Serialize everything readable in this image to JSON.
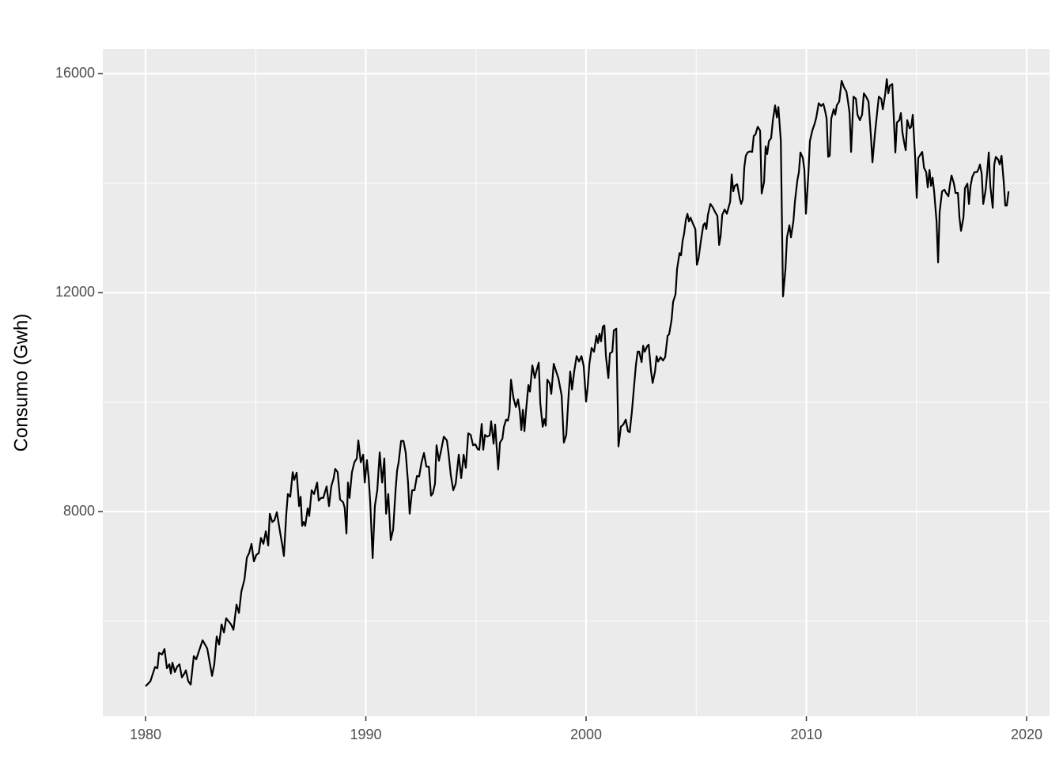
{
  "chart_data": {
    "type": "line",
    "y_label": "Consumo (Gwh)",
    "xlim": [
      1978.06,
      2021.04
    ],
    "ylim": [
      4260,
      16450
    ],
    "xticks": [
      1980,
      1990,
      2000,
      2010,
      2020
    ],
    "yticks": [
      8000,
      12000,
      16000
    ],
    "minor_xticks": [
      1985,
      1995,
      2005,
      2015
    ],
    "minor_yticks": [
      6000,
      10000,
      14000
    ],
    "grid": true,
    "color": "#000000",
    "x": [
      1980.0,
      1980.22,
      1980.43,
      1980.54,
      1980.61,
      1980.75,
      1980.86,
      1980.97,
      1981.08,
      1981.15,
      1981.22,
      1981.33,
      1981.44,
      1981.54,
      1981.65,
      1981.76,
      1981.83,
      1981.94,
      1982.05,
      1982.19,
      1982.3,
      1982.44,
      1982.59,
      1982.8,
      1983.02,
      1983.12,
      1983.23,
      1983.34,
      1983.45,
      1983.56,
      1983.66,
      1983.88,
      1983.99,
      1984.13,
      1984.24,
      1984.35,
      1984.49,
      1984.6,
      1984.7,
      1984.81,
      1984.92,
      1985.03,
      1985.14,
      1985.24,
      1985.35,
      1985.46,
      1985.57,
      1985.64,
      1985.75,
      1985.85,
      1985.96,
      1986.1,
      1986.21,
      1986.28,
      1986.39,
      1986.46,
      1986.57,
      1986.68,
      1986.75,
      1986.86,
      1986.97,
      1987.04,
      1987.11,
      1987.18,
      1987.25,
      1987.36,
      1987.43,
      1987.54,
      1987.65,
      1987.79,
      1987.86,
      1987.97,
      1988.07,
      1988.22,
      1988.33,
      1988.43,
      1988.54,
      1988.61,
      1988.72,
      1988.83,
      1988.97,
      1989.04,
      1989.12,
      1989.19,
      1989.26,
      1989.37,
      1989.48,
      1989.59,
      1989.66,
      1989.77,
      1989.88,
      1989.95,
      1990.05,
      1990.13,
      1990.2,
      1990.31,
      1990.41,
      1990.52,
      1990.63,
      1990.74,
      1990.84,
      1990.92,
      1991.02,
      1991.13,
      1991.24,
      1991.35,
      1991.42,
      1991.49,
      1991.6,
      1991.71,
      1991.81,
      1991.92,
      1991.99,
      1992.1,
      1992.21,
      1992.32,
      1992.42,
      1992.53,
      1992.64,
      1992.75,
      1992.86,
      1992.96,
      1993.04,
      1993.14,
      1993.21,
      1993.32,
      1993.43,
      1993.54,
      1993.68,
      1993.75,
      1993.86,
      1993.97,
      1994.08,
      1994.22,
      1994.33,
      1994.44,
      1994.54,
      1994.65,
      1994.76,
      1994.87,
      1994.97,
      1995.08,
      1995.15,
      1995.26,
      1995.33,
      1995.41,
      1995.51,
      1995.62,
      1995.69,
      1995.8,
      1995.87,
      1996.01,
      1996.09,
      1996.2,
      1996.27,
      1996.37,
      1996.45,
      1996.52,
      1996.59,
      1996.7,
      1996.81,
      1996.91,
      1996.99,
      1997.06,
      1997.13,
      1997.2,
      1997.27,
      1997.38,
      1997.45,
      1997.56,
      1997.67,
      1997.74,
      1997.85,
      1997.92,
      1998.03,
      1998.1,
      1998.17,
      1998.24,
      1998.35,
      1998.42,
      1998.53,
      1998.64,
      1998.74,
      1998.89,
      1998.99,
      1999.1,
      1999.21,
      1999.28,
      1999.36,
      1999.46,
      1999.57,
      1999.68,
      1999.79,
      1999.89,
      2000.0,
      2000.07,
      2000.15,
      2000.25,
      2000.36,
      2000.47,
      2000.54,
      2000.61,
      2000.68,
      2000.76,
      2000.83,
      2000.9,
      2001.01,
      2001.08,
      2001.19,
      2001.26,
      2001.37,
      2001.47,
      2001.58,
      2001.69,
      2001.8,
      2001.9,
      2001.98,
      2002.08,
      2002.16,
      2002.26,
      2002.34,
      2002.41,
      2002.52,
      2002.59,
      2002.66,
      2002.77,
      2002.84,
      2002.95,
      2003.02,
      2003.13,
      2003.2,
      2003.27,
      2003.38,
      2003.49,
      2003.59,
      2003.7,
      2003.77,
      2003.88,
      2003.95,
      2004.06,
      2004.13,
      2004.24,
      2004.31,
      2004.38,
      2004.45,
      2004.53,
      2004.6,
      2004.67,
      2004.74,
      2004.85,
      2004.96,
      2005.03,
      2005.1,
      2005.21,
      2005.32,
      2005.39,
      2005.46,
      2005.53,
      2005.64,
      2005.75,
      2005.86,
      2005.96,
      2006.04,
      2006.11,
      2006.18,
      2006.29,
      2006.39,
      2006.47,
      2006.54,
      2006.61,
      2006.68,
      2006.75,
      2006.86,
      2006.97,
      2007.04,
      2007.11,
      2007.18,
      2007.25,
      2007.33,
      2007.43,
      2007.54,
      2007.61,
      2007.69,
      2007.79,
      2007.9,
      2007.97,
      2008.08,
      2008.15,
      2008.22,
      2008.3,
      2008.4,
      2008.48,
      2008.58,
      2008.66,
      2008.73,
      2008.84,
      2008.94,
      2009.05,
      2009.12,
      2009.23,
      2009.3,
      2009.41,
      2009.48,
      2009.59,
      2009.66,
      2009.73,
      2009.84,
      2009.91,
      2009.98,
      2010.09,
      2010.16,
      2010.27,
      2010.38,
      2010.45,
      2010.56,
      2010.67,
      2010.77,
      2010.85,
      2010.92,
      2010.99,
      2011.06,
      2011.13,
      2011.24,
      2011.31,
      2011.38,
      2011.49,
      2011.6,
      2011.71,
      2011.82,
      2011.89,
      2011.96,
      2012.03,
      2012.14,
      2012.25,
      2012.32,
      2012.43,
      2012.53,
      2012.61,
      2012.71,
      2012.82,
      2012.93,
      2013.0,
      2013.11,
      2013.22,
      2013.29,
      2013.4,
      2013.47,
      2013.58,
      2013.65,
      2013.72,
      2013.79,
      2013.9,
      2013.97,
      2014.04,
      2014.11,
      2014.22,
      2014.29,
      2014.36,
      2014.44,
      2014.51,
      2014.58,
      2014.69,
      2014.76,
      2014.83,
      2014.94,
      2015.01,
      2015.08,
      2015.19,
      2015.26,
      2015.34,
      2015.44,
      2015.51,
      2015.59,
      2015.66,
      2015.73,
      2015.8,
      2015.91,
      2015.98,
      2016.05,
      2016.16,
      2016.27,
      2016.34,
      2016.45,
      2016.52,
      2016.59,
      2016.7,
      2016.77,
      2016.88,
      2016.95,
      2017.02,
      2017.13,
      2017.2,
      2017.31,
      2017.38,
      2017.45,
      2017.53,
      2017.63,
      2017.74,
      2017.81,
      2017.88,
      2017.96,
      2018.03,
      2018.14,
      2018.21,
      2018.28,
      2018.35,
      2018.46,
      2018.53,
      2018.6,
      2018.71,
      2018.78,
      2018.86,
      2018.96,
      2019.03,
      2019.1,
      2019.18
    ],
    "values": [
      4810,
      4900,
      5160,
      5140,
      5420,
      5390,
      5490,
      5140,
      5210,
      5040,
      5240,
      5070,
      5170,
      5210,
      4970,
      5040,
      5100,
      4900,
      4840,
      5360,
      5300,
      5470,
      5650,
      5500,
      5000,
      5210,
      5720,
      5570,
      5940,
      5790,
      6050,
      5940,
      5840,
      6300,
      6150,
      6540,
      6760,
      7160,
      7240,
      7410,
      7090,
      7210,
      7240,
      7520,
      7410,
      7640,
      7380,
      7960,
      7810,
      7840,
      7990,
      7640,
      7380,
      7190,
      7960,
      8320,
      8270,
      8720,
      8580,
      8710,
      8100,
      8270,
      7740,
      7810,
      7740,
      8060,
      7920,
      8390,
      8320,
      8530,
      8200,
      8250,
      8250,
      8460,
      8100,
      8460,
      8610,
      8780,
      8720,
      8220,
      8170,
      8070,
      7600,
      8530,
      8250,
      8720,
      8900,
      8970,
      9300,
      8900,
      9040,
      8530,
      8940,
      8610,
      8170,
      7150,
      8100,
      8390,
      9080,
      8530,
      8970,
      7960,
      8320,
      7480,
      7670,
      8390,
      8750,
      8900,
      9290,
      9290,
      9080,
      8510,
      7960,
      8390,
      8390,
      8650,
      8640,
      8900,
      9070,
      8820,
      8820,
      8290,
      8330,
      8510,
      9210,
      8930,
      9140,
      9370,
      9300,
      9080,
      8660,
      8390,
      8510,
      9040,
      8610,
      9040,
      8800,
      9430,
      9400,
      9210,
      9230,
      9140,
      9130,
      9600,
      9130,
      9400,
      9370,
      9390,
      9650,
      9240,
      9590,
      8770,
      9260,
      9330,
      9550,
      9680,
      9660,
      9810,
      10410,
      10080,
      9910,
      10050,
      9830,
      9490,
      9860,
      9470,
      9830,
      10310,
      10190,
      10670,
      10440,
      10560,
      10720,
      9980,
      9550,
      9690,
      9570,
      10410,
      10340,
      10150,
      10700,
      10560,
      10440,
      10120,
      9260,
      9400,
      10150,
      10560,
      10230,
      10560,
      10840,
      10740,
      10840,
      10660,
      10010,
      10270,
      10700,
      10990,
      10920,
      11210,
      11080,
      11250,
      11110,
      11380,
      11400,
      10840,
      10440,
      10890,
      10920,
      11310,
      11340,
      9190,
      9550,
      9590,
      9680,
      9470,
      9450,
      9830,
      10210,
      10670,
      10920,
      10920,
      10730,
      11030,
      10920,
      11020,
      11050,
      10560,
      10350,
      10560,
      10840,
      10740,
      10820,
      10760,
      10820,
      11210,
      11240,
      11500,
      11830,
      11970,
      12430,
      12720,
      12680,
      12940,
      13080,
      13330,
      13440,
      13300,
      13370,
      13260,
      13160,
      12510,
      12610,
      12940,
      13230,
      13270,
      13160,
      13420,
      13620,
      13560,
      13470,
      13400,
      12870,
      13040,
      13420,
      13520,
      13440,
      13560,
      13660,
      14160,
      13850,
      13950,
      13980,
      13730,
      13620,
      13700,
      14280,
      14500,
      14560,
      14580,
      14570,
      14860,
      14890,
      15030,
      14960,
      13810,
      14020,
      14670,
      14530,
      14770,
      14820,
      15150,
      15420,
      15200,
      15390,
      14770,
      11930,
      12430,
      13010,
      13230,
      13010,
      13300,
      13660,
      14050,
      14200,
      14560,
      14460,
      14240,
      13440,
      14160,
      14770,
      14960,
      15090,
      15200,
      15460,
      15410,
      15450,
      15320,
      15180,
      14480,
      14500,
      15180,
      15350,
      15250,
      15420,
      15490,
      15870,
      15750,
      15670,
      15490,
      15280,
      14570,
      15580,
      15540,
      15250,
      15150,
      15250,
      15640,
      15580,
      15490,
      14860,
      14380,
      14890,
      15320,
      15580,
      15540,
      15350,
      15630,
      15900,
      15640,
      15780,
      15810,
      15180,
      14560,
      15110,
      15150,
      15280,
      14930,
      14740,
      14600,
      15150,
      15000,
      15030,
      15250,
      14460,
      13730,
      14460,
      14530,
      14570,
      14280,
      14200,
      13920,
      14240,
      13950,
      14100,
      13850,
      13300,
      12550,
      13470,
      13850,
      13880,
      13820,
      13760,
      13980,
      14140,
      13990,
      13820,
      13820,
      13370,
      13130,
      13370,
      13910,
      13990,
      13620,
      13940,
      14110,
      14200,
      14200,
      14250,
      14340,
      14170,
      13620,
      13880,
      14200,
      14560,
      13950,
      13550,
      14340,
      14480,
      14430,
      14340,
      14500,
      14020,
      13590,
      13590,
      13850
    ]
  }
}
